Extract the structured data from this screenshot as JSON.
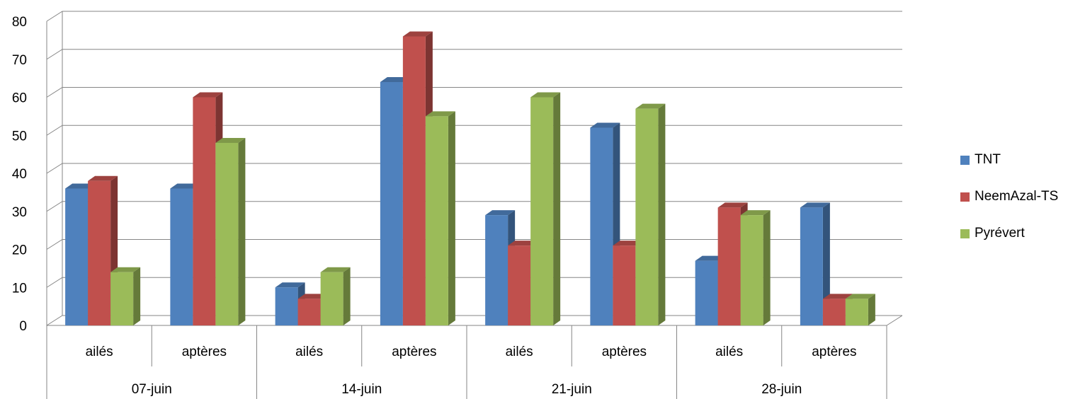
{
  "chart_data": {
    "type": "bar",
    "style": "3d-clustered-column",
    "title": "",
    "xlabel": "",
    "ylabel": "",
    "ylim": [
      0,
      80
    ],
    "yticks": [
      0,
      10,
      20,
      30,
      40,
      50,
      60,
      70,
      80
    ],
    "grid": true,
    "legend_position": "right",
    "group_labels": [
      "07-juin",
      "14-juin",
      "21-juin",
      "28-juin"
    ],
    "categories": [
      "ailés",
      "aptères",
      "ailés",
      "aptères",
      "ailés",
      "aptères",
      "ailés",
      "aptères"
    ],
    "series": [
      {
        "name": "TNT",
        "color": "#4F81BD",
        "values": [
          36,
          36,
          10,
          64,
          29,
          52,
          17,
          31
        ]
      },
      {
        "name": "NeemAzal-TS",
        "color": "#C0504D",
        "values": [
          38,
          60,
          7,
          76,
          21,
          21,
          31,
          7
        ]
      },
      {
        "name": "Pyrévert",
        "color": "#9BBB59",
        "values": [
          14,
          48,
          14,
          55,
          60,
          57,
          29,
          7
        ]
      }
    ]
  }
}
